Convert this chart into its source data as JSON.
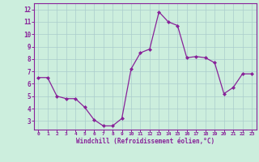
{
  "x": [
    0,
    1,
    2,
    3,
    4,
    5,
    6,
    7,
    8,
    9,
    10,
    11,
    12,
    13,
    14,
    15,
    16,
    17,
    18,
    19,
    20,
    21,
    22,
    23
  ],
  "y": [
    6.5,
    6.5,
    5.0,
    4.8,
    4.8,
    4.1,
    3.1,
    2.6,
    2.6,
    3.2,
    7.2,
    8.5,
    8.8,
    11.8,
    11.0,
    10.7,
    8.1,
    8.2,
    8.1,
    7.7,
    5.2,
    5.7,
    6.8,
    6.8
  ],
  "line_color": "#882299",
  "marker_color": "#882299",
  "bg_color": "#CCEEDD",
  "grid_color": "#AACCCC",
  "xlabel": "Windchill (Refroidissement éolien,°C)",
  "xlim": [
    -0.5,
    23.5
  ],
  "ylim": [
    2.3,
    12.5
  ],
  "yticks": [
    3,
    4,
    5,
    6,
    7,
    8,
    9,
    10,
    11,
    12
  ],
  "xticks": [
    0,
    1,
    2,
    3,
    4,
    5,
    6,
    7,
    8,
    9,
    10,
    11,
    12,
    13,
    14,
    15,
    16,
    17,
    18,
    19,
    20,
    21,
    22,
    23
  ],
  "tick_label_color": "#882299",
  "axis_label_color": "#882299",
  "spine_color": "#882299"
}
